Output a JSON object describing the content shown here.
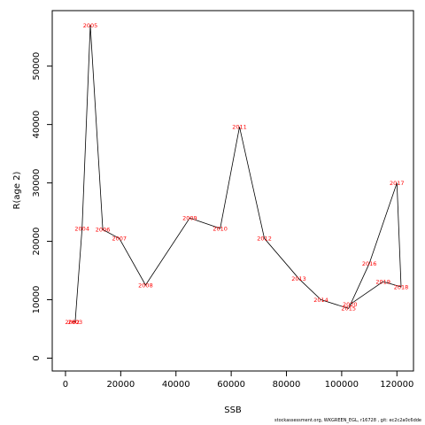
{
  "chart_data": {
    "type": "line",
    "xlabel": "SSB",
    "ylabel": "R(age 2)",
    "xlim": [
      -4800,
      126000
    ],
    "ylim": [
      -2200,
      59500
    ],
    "x_ticks": [
      0,
      20000,
      40000,
      60000,
      80000,
      100000,
      120000
    ],
    "y_ticks": [
      0,
      10000,
      20000,
      30000,
      40000,
      50000
    ],
    "grid": false,
    "points": [
      {
        "label": "2002",
        "x": 2500,
        "y": 6200
      },
      {
        "label": "2003",
        "x": 3500,
        "y": 6200
      },
      {
        "label": "2004",
        "x": 6000,
        "y": 22200
      },
      {
        "label": "2005",
        "x": 9000,
        "y": 57000
      },
      {
        "label": "2006",
        "x": 13500,
        "y": 22000
      },
      {
        "label": "2007",
        "x": 19500,
        "y": 20500
      },
      {
        "label": "2008",
        "x": 29000,
        "y": 12500
      },
      {
        "label": "2009",
        "x": 45000,
        "y": 24000
      },
      {
        "label": "2010",
        "x": 56000,
        "y": 22200
      },
      {
        "label": "2011",
        "x": 63000,
        "y": 39600
      },
      {
        "label": "2012",
        "x": 72000,
        "y": 20500
      },
      {
        "label": "2013",
        "x": 84500,
        "y": 13600
      },
      {
        "label": "2014",
        "x": 92500,
        "y": 10000
      },
      {
        "label": "2015",
        "x": 102500,
        "y": 8500
      },
      {
        "label": "2016",
        "x": 110000,
        "y": 16200
      },
      {
        "label": "2017",
        "x": 120000,
        "y": 30000
      },
      {
        "label": "2018",
        "x": 121500,
        "y": 12200
      },
      {
        "label": "2019",
        "x": 115000,
        "y": 13100
      },
      {
        "label": "2020",
        "x": 103000,
        "y": 9200
      }
    ]
  },
  "footer": "stockassessment.org, WKGREEN_EGL, r16728 , git: ec2c2a0c6dde"
}
